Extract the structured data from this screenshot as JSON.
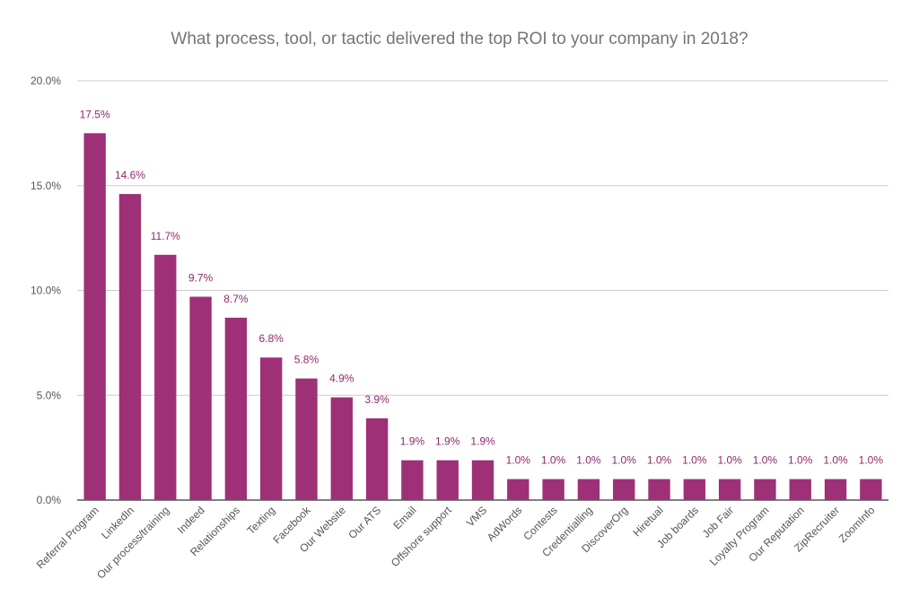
{
  "chart_data": {
    "type": "bar",
    "title": "What process, tool, or tactic delivered the top ROI to your company in 2018?",
    "xlabel": "",
    "ylabel": "",
    "ylim": [
      0,
      20
    ],
    "yticks": [
      "0.0%",
      "5.0%",
      "10.0%",
      "15.0%",
      "20.0%"
    ],
    "grid": true,
    "legend": "none",
    "bar_color": "#9E3078",
    "label_color": "#8E2A6C",
    "categories": [
      "Referral Program",
      "LinkedIn",
      "Our process/training",
      "Indeed",
      "Relationships",
      "Texting",
      "Facebook",
      "Our Website",
      "Our ATS",
      "Email",
      "Offshore support",
      "VMS",
      "AdWords",
      "Contests",
      "Credentialling",
      "DiscoverOrg",
      "Hiretual",
      "Job boards",
      "Job Fair",
      "Loyalty Program",
      "Our Reputation",
      "ZipRecruiter",
      "ZoomInfo"
    ],
    "values": [
      17.5,
      14.6,
      11.7,
      9.7,
      8.7,
      6.8,
      5.8,
      4.9,
      3.9,
      1.9,
      1.9,
      1.9,
      1.0,
      1.0,
      1.0,
      1.0,
      1.0,
      1.0,
      1.0,
      1.0,
      1.0,
      1.0,
      1.0
    ],
    "value_labels": [
      "17.5%",
      "14.6%",
      "11.7%",
      "9.7%",
      "8.7%",
      "6.8%",
      "5.8%",
      "4.9%",
      "3.9%",
      "1.9%",
      "1.9%",
      "1.9%",
      "1.0%",
      "1.0%",
      "1.0%",
      "1.0%",
      "1.0%",
      "1.0%",
      "1.0%",
      "1.0%",
      "1.0%",
      "1.0%",
      "1.0%"
    ]
  }
}
